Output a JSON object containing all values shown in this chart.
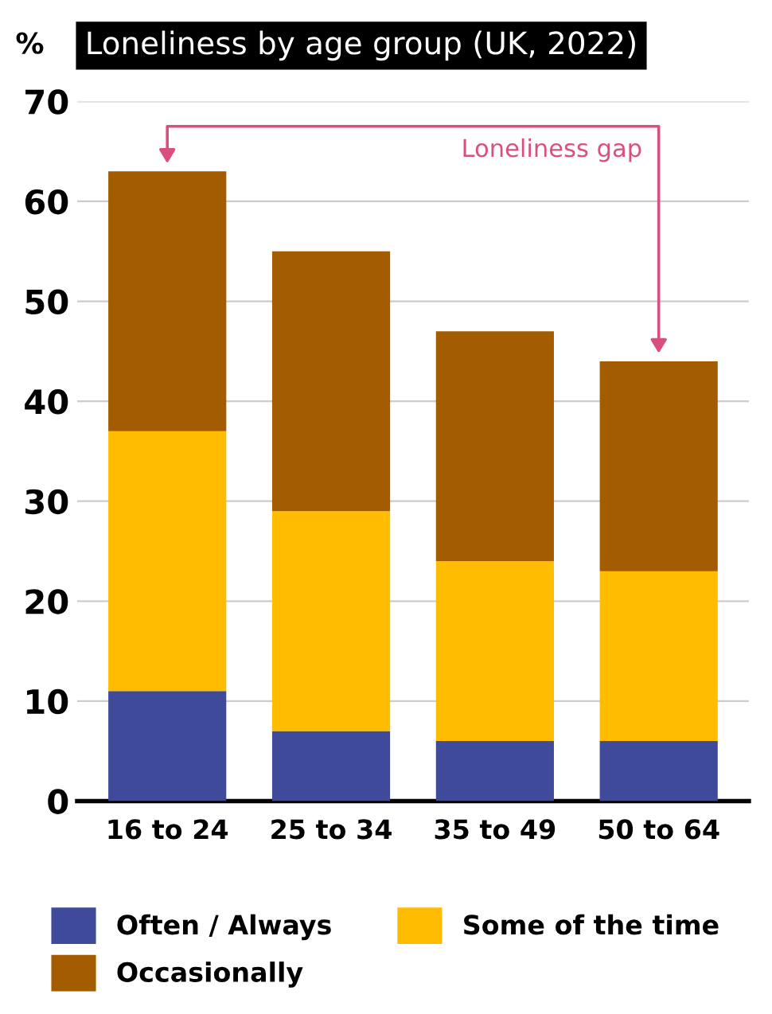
{
  "chart_data": {
    "type": "bar",
    "title": "Loneliness by age group (UK, 2022)",
    "ylabel": "%",
    "categories": [
      "16 to 24",
      "25 to 34",
      "35 to 49",
      "50 to 64"
    ],
    "stacked": true,
    "series": [
      {
        "name": "Often / Always",
        "color": "#3f4a9b",
        "values": [
          11,
          7,
          6,
          6
        ]
      },
      {
        "name": "Some of the time",
        "color": "#ffbc00",
        "values": [
          26,
          22,
          18,
          17
        ]
      },
      {
        "name": "Occasionally",
        "color": "#a35c00",
        "values": [
          26,
          26,
          23,
          21
        ]
      }
    ],
    "ylim": [
      0,
      70
    ],
    "yticks": [
      0,
      10,
      20,
      30,
      40,
      50,
      60,
      70
    ],
    "grid": "y",
    "legend": "bottom",
    "annotations": [
      "Loneliness gap"
    ]
  }
}
